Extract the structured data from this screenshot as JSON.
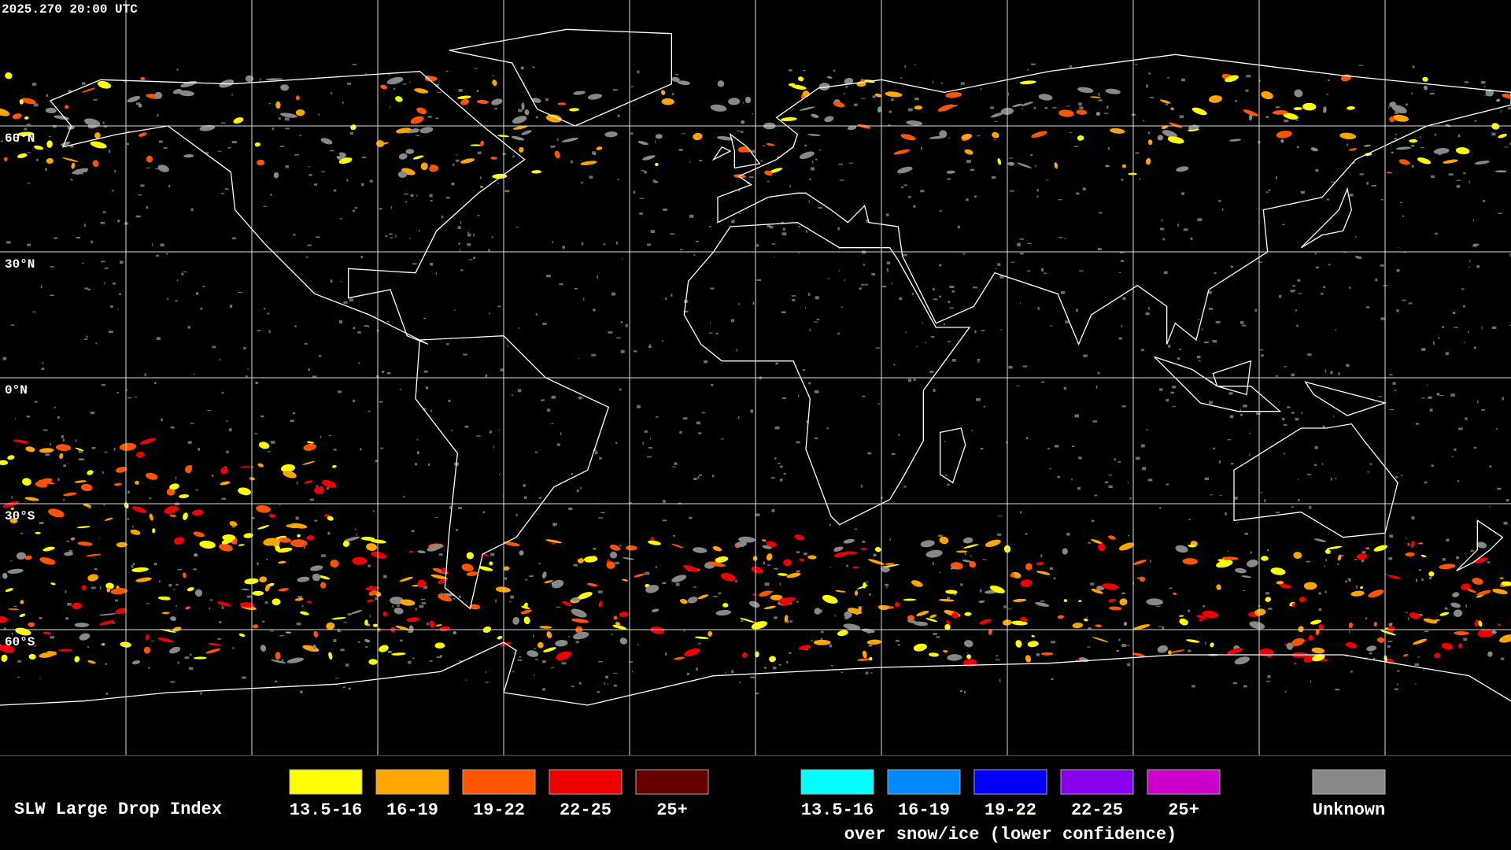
{
  "timestamp": "2025.270 20:00 UTC",
  "lat_labels": [
    "60°N",
    "30°N",
    "0°N",
    "30°S",
    "60°S"
  ],
  "legend": {
    "title": "SLW Large Drop Index",
    "items": [
      {
        "label": "13.5-16",
        "color": "#ffff00"
      },
      {
        "label": "16-19",
        "color": "#ffa500"
      },
      {
        "label": "19-22",
        "color": "#ff5500"
      },
      {
        "label": "22-25",
        "color": "#ee0000"
      },
      {
        "label": "25+",
        "color": "#660000"
      }
    ],
    "snow_items": [
      {
        "label": "13.5-16",
        "color": "#00ffff"
      },
      {
        "label": "16-19",
        "color": "#0088ff"
      },
      {
        "label": "19-22",
        "color": "#0000ff"
      },
      {
        "label": "22-25",
        "color": "#8800ee"
      },
      {
        "label": "25+",
        "color": "#cc00cc"
      }
    ],
    "snow_caption": "over snow/ice (lower confidence)",
    "unknown": {
      "label": "Unknown",
      "color": "#888888"
    }
  }
}
